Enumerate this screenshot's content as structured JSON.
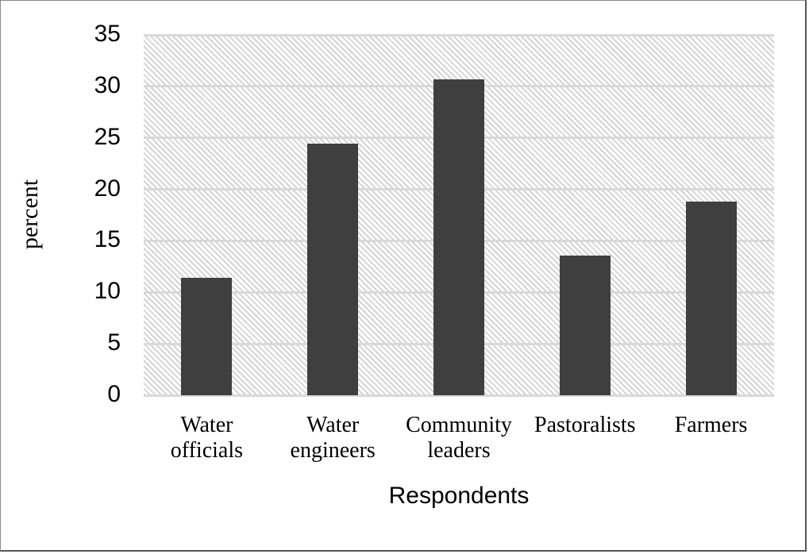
{
  "chart_data": {
    "type": "bar",
    "title": "",
    "xlabel": "Respondents",
    "ylabel": "percent",
    "categories": [
      "Water officials",
      "Water engineers",
      "Community leaders",
      "Pastoralists",
      "Farmers"
    ],
    "category_lines": [
      [
        "Water",
        "officials"
      ],
      [
        "Water",
        "engineers"
      ],
      [
        "Community",
        "leaders"
      ],
      [
        "Pastoralists"
      ],
      [
        "Farmers"
      ]
    ],
    "values": [
      11.4,
      24.4,
      30.7,
      13.6,
      18.8
    ],
    "ylim": [
      0,
      35
    ],
    "yticks": [
      0,
      5,
      10,
      15,
      20,
      25,
      30,
      35
    ],
    "grid": true,
    "legend": null,
    "bar_color": "#3f3f3f",
    "plot_background": "diagonal hatch light gray"
  }
}
